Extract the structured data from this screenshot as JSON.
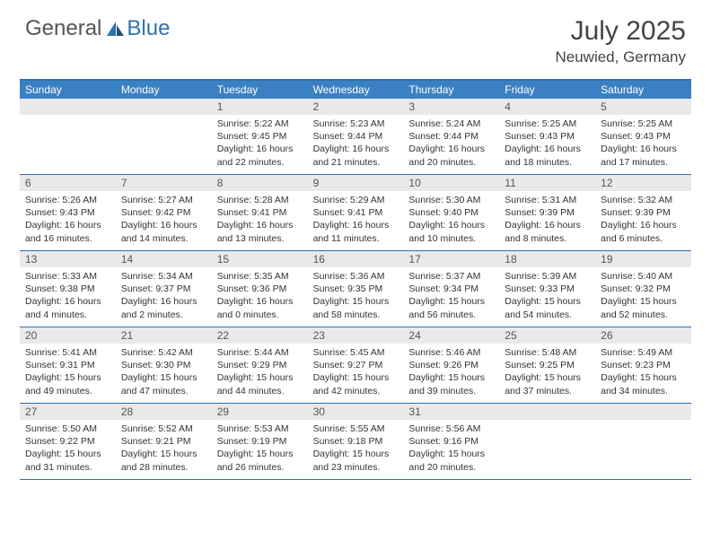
{
  "brand": {
    "part1": "General",
    "part2": "Blue"
  },
  "title": "July 2025",
  "location": "Neuwied, Germany",
  "colors": {
    "header_bg": "#3a80c3",
    "border": "#2f6fad",
    "daynum_bg": "#e7e9eb",
    "text": "#333333",
    "title_text": "#444444",
    "logo_gray": "#555555",
    "logo_blue": "#2f6fad"
  },
  "weekdays": [
    "Sunday",
    "Monday",
    "Tuesday",
    "Wednesday",
    "Thursday",
    "Friday",
    "Saturday"
  ],
  "weeks": [
    [
      {
        "n": "",
        "lines": []
      },
      {
        "n": "",
        "lines": []
      },
      {
        "n": "1",
        "lines": [
          "Sunrise: 5:22 AM",
          "Sunset: 9:45 PM",
          "Daylight: 16 hours",
          "and 22 minutes."
        ]
      },
      {
        "n": "2",
        "lines": [
          "Sunrise: 5:23 AM",
          "Sunset: 9:44 PM",
          "Daylight: 16 hours",
          "and 21 minutes."
        ]
      },
      {
        "n": "3",
        "lines": [
          "Sunrise: 5:24 AM",
          "Sunset: 9:44 PM",
          "Daylight: 16 hours",
          "and 20 minutes."
        ]
      },
      {
        "n": "4",
        "lines": [
          "Sunrise: 5:25 AM",
          "Sunset: 9:43 PM",
          "Daylight: 16 hours",
          "and 18 minutes."
        ]
      },
      {
        "n": "5",
        "lines": [
          "Sunrise: 5:25 AM",
          "Sunset: 9:43 PM",
          "Daylight: 16 hours",
          "and 17 minutes."
        ]
      }
    ],
    [
      {
        "n": "6",
        "lines": [
          "Sunrise: 5:26 AM",
          "Sunset: 9:43 PM",
          "Daylight: 16 hours",
          "and 16 minutes."
        ]
      },
      {
        "n": "7",
        "lines": [
          "Sunrise: 5:27 AM",
          "Sunset: 9:42 PM",
          "Daylight: 16 hours",
          "and 14 minutes."
        ]
      },
      {
        "n": "8",
        "lines": [
          "Sunrise: 5:28 AM",
          "Sunset: 9:41 PM",
          "Daylight: 16 hours",
          "and 13 minutes."
        ]
      },
      {
        "n": "9",
        "lines": [
          "Sunrise: 5:29 AM",
          "Sunset: 9:41 PM",
          "Daylight: 16 hours",
          "and 11 minutes."
        ]
      },
      {
        "n": "10",
        "lines": [
          "Sunrise: 5:30 AM",
          "Sunset: 9:40 PM",
          "Daylight: 16 hours",
          "and 10 minutes."
        ]
      },
      {
        "n": "11",
        "lines": [
          "Sunrise: 5:31 AM",
          "Sunset: 9:39 PM",
          "Daylight: 16 hours",
          "and 8 minutes."
        ]
      },
      {
        "n": "12",
        "lines": [
          "Sunrise: 5:32 AM",
          "Sunset: 9:39 PM",
          "Daylight: 16 hours",
          "and 6 minutes."
        ]
      }
    ],
    [
      {
        "n": "13",
        "lines": [
          "Sunrise: 5:33 AM",
          "Sunset: 9:38 PM",
          "Daylight: 16 hours",
          "and 4 minutes."
        ]
      },
      {
        "n": "14",
        "lines": [
          "Sunrise: 5:34 AM",
          "Sunset: 9:37 PM",
          "Daylight: 16 hours",
          "and 2 minutes."
        ]
      },
      {
        "n": "15",
        "lines": [
          "Sunrise: 5:35 AM",
          "Sunset: 9:36 PM",
          "Daylight: 16 hours",
          "and 0 minutes."
        ]
      },
      {
        "n": "16",
        "lines": [
          "Sunrise: 5:36 AM",
          "Sunset: 9:35 PM",
          "Daylight: 15 hours",
          "and 58 minutes."
        ]
      },
      {
        "n": "17",
        "lines": [
          "Sunrise: 5:37 AM",
          "Sunset: 9:34 PM",
          "Daylight: 15 hours",
          "and 56 minutes."
        ]
      },
      {
        "n": "18",
        "lines": [
          "Sunrise: 5:39 AM",
          "Sunset: 9:33 PM",
          "Daylight: 15 hours",
          "and 54 minutes."
        ]
      },
      {
        "n": "19",
        "lines": [
          "Sunrise: 5:40 AM",
          "Sunset: 9:32 PM",
          "Daylight: 15 hours",
          "and 52 minutes."
        ]
      }
    ],
    [
      {
        "n": "20",
        "lines": [
          "Sunrise: 5:41 AM",
          "Sunset: 9:31 PM",
          "Daylight: 15 hours",
          "and 49 minutes."
        ]
      },
      {
        "n": "21",
        "lines": [
          "Sunrise: 5:42 AM",
          "Sunset: 9:30 PM",
          "Daylight: 15 hours",
          "and 47 minutes."
        ]
      },
      {
        "n": "22",
        "lines": [
          "Sunrise: 5:44 AM",
          "Sunset: 9:29 PM",
          "Daylight: 15 hours",
          "and 44 minutes."
        ]
      },
      {
        "n": "23",
        "lines": [
          "Sunrise: 5:45 AM",
          "Sunset: 9:27 PM",
          "Daylight: 15 hours",
          "and 42 minutes."
        ]
      },
      {
        "n": "24",
        "lines": [
          "Sunrise: 5:46 AM",
          "Sunset: 9:26 PM",
          "Daylight: 15 hours",
          "and 39 minutes."
        ]
      },
      {
        "n": "25",
        "lines": [
          "Sunrise: 5:48 AM",
          "Sunset: 9:25 PM",
          "Daylight: 15 hours",
          "and 37 minutes."
        ]
      },
      {
        "n": "26",
        "lines": [
          "Sunrise: 5:49 AM",
          "Sunset: 9:23 PM",
          "Daylight: 15 hours",
          "and 34 minutes."
        ]
      }
    ],
    [
      {
        "n": "27",
        "lines": [
          "Sunrise: 5:50 AM",
          "Sunset: 9:22 PM",
          "Daylight: 15 hours",
          "and 31 minutes."
        ]
      },
      {
        "n": "28",
        "lines": [
          "Sunrise: 5:52 AM",
          "Sunset: 9:21 PM",
          "Daylight: 15 hours",
          "and 28 minutes."
        ]
      },
      {
        "n": "29",
        "lines": [
          "Sunrise: 5:53 AM",
          "Sunset: 9:19 PM",
          "Daylight: 15 hours",
          "and 26 minutes."
        ]
      },
      {
        "n": "30",
        "lines": [
          "Sunrise: 5:55 AM",
          "Sunset: 9:18 PM",
          "Daylight: 15 hours",
          "and 23 minutes."
        ]
      },
      {
        "n": "31",
        "lines": [
          "Sunrise: 5:56 AM",
          "Sunset: 9:16 PM",
          "Daylight: 15 hours",
          "and 20 minutes."
        ]
      },
      {
        "n": "",
        "lines": []
      },
      {
        "n": "",
        "lines": []
      }
    ]
  ]
}
